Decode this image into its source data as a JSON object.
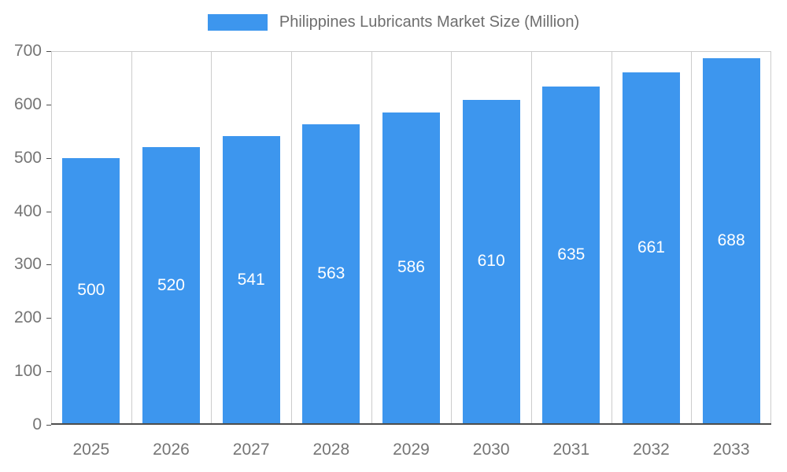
{
  "chart_data": {
    "type": "bar",
    "title": "Philippines Lubricants Market Size (Million)",
    "categories": [
      "2025",
      "2026",
      "2027",
      "2028",
      "2029",
      "2030",
      "2031",
      "2032",
      "2033"
    ],
    "values": [
      500,
      520,
      541,
      563,
      586,
      610,
      635,
      661,
      688
    ],
    "xlabel": "",
    "ylabel": "",
    "ylim": [
      0,
      700
    ],
    "yticks": [
      0,
      100,
      200,
      300,
      400,
      500,
      600,
      700
    ],
    "grid": "vertical",
    "legend_position": "top-center",
    "value_labels_position": "inside-center"
  },
  "legend": {
    "label": "Philippines Lubricants Market Size (Million)"
  },
  "colors": {
    "bar": "#3D96EE",
    "grid": "#CCCCCC",
    "axis_line": "#4D4D4D",
    "tick_text": "#757575",
    "legend_text": "#6E6E6E",
    "value_label_text": "#FFFFFF",
    "background": "#FFFFFF"
  }
}
